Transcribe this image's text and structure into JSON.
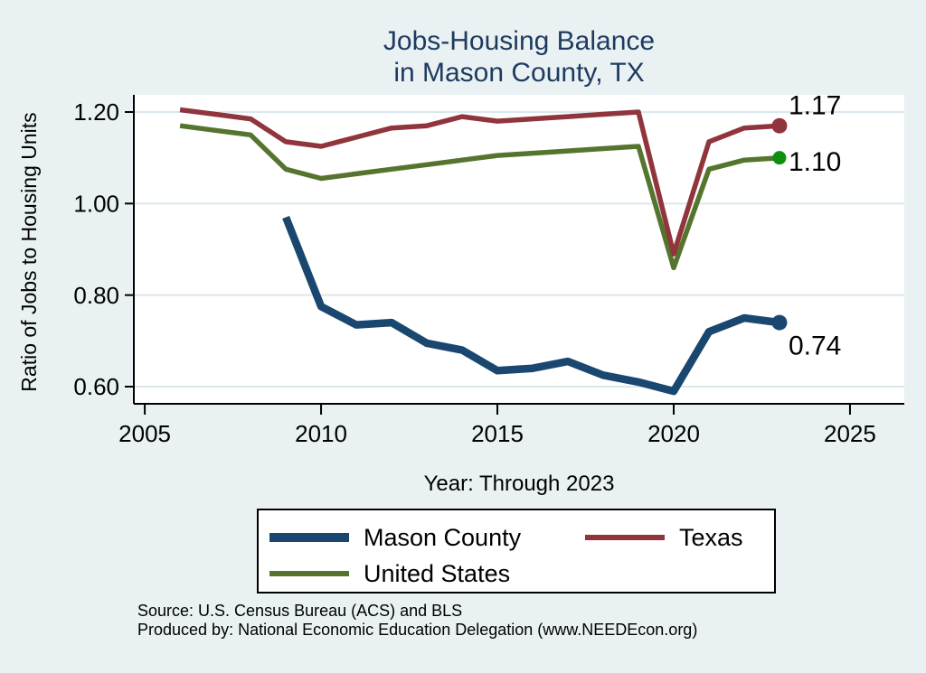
{
  "page": {
    "background": "#e9f1f3"
  },
  "title": {
    "line1": "Jobs-Housing Balance",
    "line2": "in Mason County, TX",
    "color": "#1e3a5f"
  },
  "axes": {
    "ylabel": "Ratio of Jobs to Housing Units",
    "xlabel": "Year: Through 2023"
  },
  "legend": {
    "items": [
      {
        "label": "Mason County",
        "series": "Mason County"
      },
      {
        "label": "Texas",
        "series": "Texas"
      },
      {
        "label": "United States",
        "series": "United States"
      }
    ]
  },
  "source": {
    "line1": "Source: U.S. Census Bureau (ACS) and BLS",
    "line2": "Produced by: National Economic Education Delegation (www.NEEDEcon.org)"
  },
  "chart_data": {
    "type": "line",
    "title": "Jobs-Housing Balance in Mason County, TX",
    "xlabel": "Year: Through 2023",
    "ylabel": "Ratio of Jobs to Housing Units",
    "xlim": [
      2004.69,
      2026.54
    ],
    "ylim": [
      0.5625,
      1.2375
    ],
    "xticks": [
      2005,
      2010,
      2015,
      2020,
      2025
    ],
    "xtick_labels": [
      "2005",
      "2010",
      "2015",
      "2020",
      "2025"
    ],
    "yticks": [
      1.2,
      1.0,
      0.8,
      0.6
    ],
    "ytick_labels": [
      "1.20",
      "1.00",
      "0.80",
      "0.60"
    ],
    "grid": "horizontal",
    "grid_color": "#dbe7ec",
    "plot_background": "#ffffff",
    "legend_position": "bottom",
    "series": [
      {
        "name": "United States",
        "color": "#55752f",
        "marker_color": "#0f8f0f",
        "width": 5.5,
        "marker_radius": 7.5,
        "end_label": "1.10",
        "label_dy": 4,
        "x": [
          2006,
          2007,
          2008,
          2009,
          2010,
          2011,
          2012,
          2013,
          2014,
          2015,
          2016,
          2017,
          2018,
          2019,
          2020,
          2021,
          2022,
          2023
        ],
        "values": [
          1.17,
          1.16,
          1.15,
          1.075,
          1.055,
          1.065,
          1.075,
          1.085,
          1.095,
          1.105,
          1.11,
          1.115,
          1.12,
          1.125,
          0.86,
          1.075,
          1.095,
          1.1
        ]
      },
      {
        "name": "Texas",
        "color": "#90353b",
        "marker_color": "#90353b",
        "width": 5.5,
        "marker_radius": 8.5,
        "end_label": "1.17",
        "label_dy": -23,
        "x": [
          2006,
          2007,
          2008,
          2009,
          2010,
          2011,
          2012,
          2013,
          2014,
          2015,
          2016,
          2017,
          2018,
          2019,
          2020,
          2021,
          2022,
          2023
        ],
        "values": [
          1.205,
          1.195,
          1.185,
          1.135,
          1.125,
          1.145,
          1.165,
          1.17,
          1.19,
          1.18,
          1.185,
          1.19,
          1.195,
          1.2,
          0.89,
          1.135,
          1.165,
          1.17
        ]
      },
      {
        "name": "Mason County",
        "color": "#1a476f",
        "marker_color": "#1a476f",
        "width": 8.5,
        "marker_radius": 8.5,
        "end_label": "0.74",
        "label_dy": 25,
        "x": [
          2009,
          2010,
          2011,
          2012,
          2013,
          2014,
          2015,
          2016,
          2017,
          2018,
          2019,
          2020,
          2021,
          2022,
          2023
        ],
        "values": [
          0.97,
          0.775,
          0.735,
          0.74,
          0.695,
          0.68,
          0.635,
          0.64,
          0.655,
          0.625,
          0.61,
          0.59,
          0.72,
          0.75,
          0.74
        ]
      }
    ]
  }
}
